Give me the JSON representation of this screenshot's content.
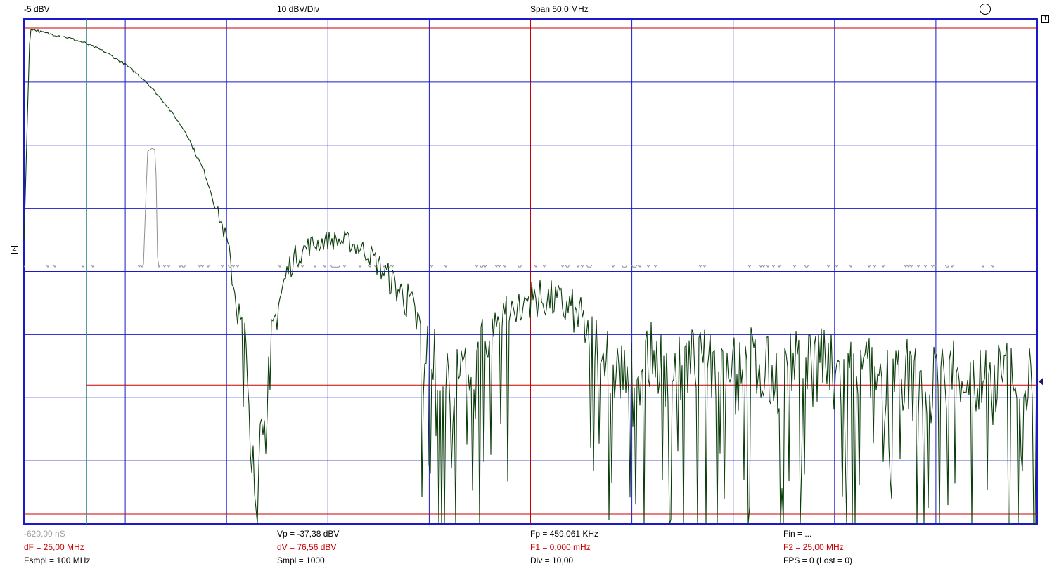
{
  "header": {
    "ref_level": "-5 dBV",
    "scale": "10 dBV/Div",
    "span": "Span 50,0 MHz"
  },
  "markers": {
    "trigger_label": "T",
    "zero_label": "Z"
  },
  "colors": {
    "grid": "#1a1acc",
    "cursor_red": "#cc0000",
    "spectrum": "#0b3d0b",
    "waveform": "#909090",
    "cursor_teal": "#3a8a8a"
  },
  "footer": {
    "col1": {
      "time": "-620,00 nS",
      "df": "dF = 25,00 MHz",
      "fsmpl": "Fsmpl = 100 MHz"
    },
    "col2": {
      "vp": "Vp = -37,38 dBV",
      "dv": "dV = 76,56 dBV",
      "smpl": "Smpl = 1000"
    },
    "col3": {
      "fp": "Fp = 459,061 KHz",
      "f1": "F1 = 0,000 mHz",
      "div": "Div = 10,00"
    },
    "col4": {
      "fin": "Fin = ...",
      "f2": "F2 = 25,00 MHz",
      "fps": "FPS = 0 (Lost = 0)"
    }
  },
  "chart_data": {
    "type": "line",
    "xlim": [
      0,
      50
    ],
    "ylim": [
      -85,
      -5
    ],
    "x_divisions": 10,
    "y_divisions": 8,
    "cursor_f1_mhz": 0,
    "cursor_f2_mhz": 25,
    "series": [
      {
        "x": [
          0,
          0.3,
          1,
          2,
          3,
          4,
          5,
          6,
          7,
          8,
          9,
          10,
          11,
          11.5,
          12,
          12.5,
          13,
          13.3,
          14,
          15,
          16,
          17,
          18,
          19,
          20,
          21,
          22,
          23,
          24,
          25,
          26,
          27,
          28,
          29,
          30,
          31,
          32,
          33,
          34,
          35,
          36,
          37,
          38,
          39,
          40,
          41,
          42,
          43,
          44,
          45,
          46,
          47,
          48,
          49,
          50
        ],
        "y": [
          -40,
          -6.5,
          -7.2,
          -7.8,
          -8.8,
          -10.2,
          -12.2,
          -14.8,
          -18.5,
          -23,
          -30,
          -40,
          -60,
          -80,
          -62,
          -51,
          -45,
          -43,
          -41,
          -40,
          -40.3,
          -42,
          -46,
          -50,
          -58,
          -64,
          -60,
          -55,
          -51,
          -49.2,
          -49.5,
          -51,
          -55,
          -60,
          -62,
          -58,
          -62,
          -59,
          -60,
          -58,
          -59,
          -62,
          -60,
          -58,
          -61,
          -60,
          -62,
          -60,
          -63,
          -62,
          -60,
          -63,
          -62,
          -61,
          -64
        ]
      },
      {
        "x": [
          0,
          5.8,
          5.9,
          6.1,
          6.3,
          6.5,
          6.6,
          6.8,
          50
        ],
        "y": [
          -44,
          -44,
          -44,
          -26,
          -25.5,
          -25.7,
          -44,
          -44,
          -44
        ]
      }
    ]
  }
}
